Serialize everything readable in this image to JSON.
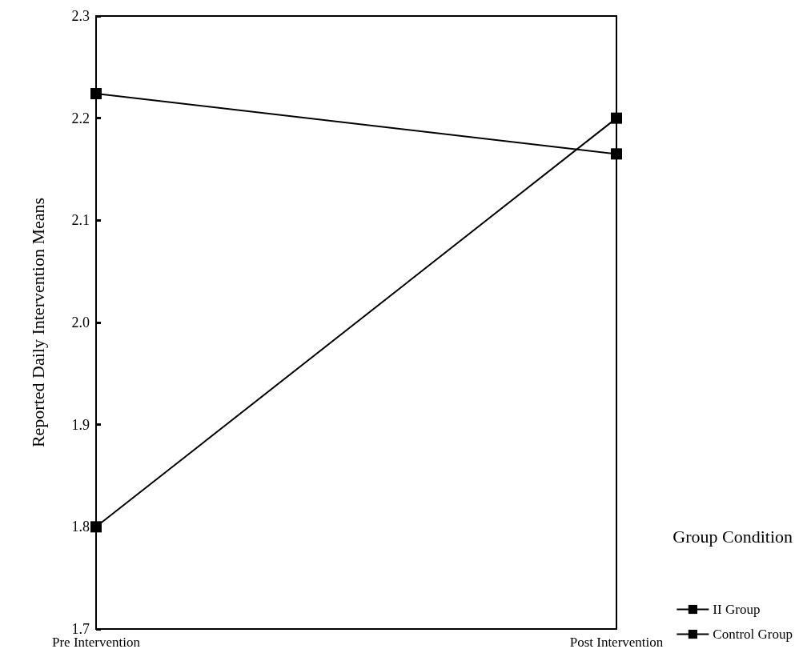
{
  "chart_data": {
    "type": "line",
    "ylabel": "Reported Daily Intervention Means",
    "legend_title": "Group Condition",
    "categories": [
      "Pre Intervention",
      "Post Intervention"
    ],
    "series": [
      {
        "name": "II Group",
        "color": "#000000",
        "values": [
          1.8,
          2.2
        ]
      },
      {
        "name": "Control Group",
        "color": "#000000",
        "values": [
          2.224,
          2.165
        ]
      }
    ],
    "ylim": [
      1.7,
      2.3
    ],
    "yticks": [
      1.7,
      1.8,
      1.9,
      {
        "value": 2,
        "label": "2.0"
      },
      2.1,
      2.2,
      2.3
    ],
    "grid": false,
    "legend": "bottom right",
    "marker": "square",
    "line_style": "solid"
  }
}
